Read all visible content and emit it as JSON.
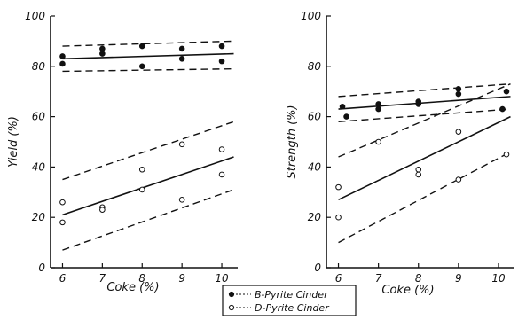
{
  "chart_data": [
    {
      "type": "scatter",
      "panel": "left",
      "title": "",
      "xlabel": "Coke (%)",
      "ylabel": "Yield (%)",
      "xlim": [
        5.7,
        10.4
      ],
      "ylim": [
        0,
        100
      ],
      "xticks": [
        "6",
        "7",
        "8",
        "9",
        "10"
      ],
      "yticks": [
        "0",
        "20",
        "40",
        "60",
        "80",
        "100"
      ],
      "grid": false,
      "series": [
        {
          "name": "B-Pyrite Cinder",
          "marker": "filled-circle",
          "points": [
            {
              "x": 6,
              "y": 84
            },
            {
              "x": 6,
              "y": 81
            },
            {
              "x": 7,
              "y": 87
            },
            {
              "x": 7,
              "y": 85
            },
            {
              "x": 8,
              "y": 88
            },
            {
              "x": 8,
              "y": 80
            },
            {
              "x": 9,
              "y": 87
            },
            {
              "x": 9,
              "y": 83
            },
            {
              "x": 10,
              "y": 88
            },
            {
              "x": 10,
              "y": 82
            }
          ],
          "regression": {
            "x": [
              6,
              10.3
            ],
            "y": [
              83,
              85
            ]
          },
          "band_upper": {
            "x": [
              6,
              10.3
            ],
            "y": [
              88,
              90
            ]
          },
          "band_lower": {
            "x": [
              6,
              10.3
            ],
            "y": [
              78,
              79
            ]
          }
        },
        {
          "name": "D-Pyrite Cinder",
          "marker": "open-circle",
          "points": [
            {
              "x": 6,
              "y": 26
            },
            {
              "x": 6,
              "y": 18
            },
            {
              "x": 7,
              "y": 24
            },
            {
              "x": 7,
              "y": 23
            },
            {
              "x": 8,
              "y": 39
            },
            {
              "x": 8,
              "y": 31
            },
            {
              "x": 9,
              "y": 49
            },
            {
              "x": 9,
              "y": 27
            },
            {
              "x": 10,
              "y": 47
            },
            {
              "x": 10,
              "y": 37
            }
          ],
          "regression": {
            "x": [
              6,
              10.3
            ],
            "y": [
              21,
              44
            ]
          },
          "band_upper": {
            "x": [
              6,
              10.3
            ],
            "y": [
              35,
              58
            ]
          },
          "band_lower": {
            "x": [
              6,
              10.3
            ],
            "y": [
              7,
              31
            ]
          }
        }
      ]
    },
    {
      "type": "scatter",
      "panel": "right",
      "title": "",
      "xlabel": "Coke (%)",
      "ylabel": "Strength (%)",
      "xlim": [
        5.7,
        10.4
      ],
      "ylim": [
        0,
        100
      ],
      "xticks": [
        "6",
        "7",
        "8",
        "9",
        "10"
      ],
      "yticks": [
        "0",
        "20",
        "40",
        "60",
        "80",
        "100"
      ],
      "grid": false,
      "series": [
        {
          "name": "B-Pyrite Cinder",
          "marker": "filled-circle",
          "points": [
            {
              "x": 6.1,
              "y": 64
            },
            {
              "x": 6.2,
              "y": 60
            },
            {
              "x": 7,
              "y": 65
            },
            {
              "x": 7,
              "y": 63
            },
            {
              "x": 8,
              "y": 66
            },
            {
              "x": 8,
              "y": 65
            },
            {
              "x": 9,
              "y": 71
            },
            {
              "x": 9,
              "y": 69
            },
            {
              "x": 10.2,
              "y": 70
            },
            {
              "x": 10.1,
              "y": 63
            }
          ],
          "regression": {
            "x": [
              6,
              10.3
            ],
            "y": [
              63,
              68
            ]
          },
          "band_upper": {
            "x": [
              6,
              10.3
            ],
            "y": [
              68,
              73
            ]
          },
          "band_lower": {
            "x": [
              6,
              10.3
            ],
            "y": [
              58,
              63
            ]
          }
        },
        {
          "name": "D-Pyrite Cinder",
          "marker": "open-circle",
          "points": [
            {
              "x": 6,
              "y": 32
            },
            {
              "x": 6,
              "y": 20
            },
            {
              "x": 7,
              "y": 50
            },
            {
              "x": 8,
              "y": 39
            },
            {
              "x": 8,
              "y": 37
            },
            {
              "x": 9,
              "y": 54
            },
            {
              "x": 9,
              "y": 35
            },
            {
              "x": 10.2,
              "y": 45
            }
          ],
          "regression": {
            "x": [
              6,
              10.3
            ],
            "y": [
              27,
              60
            ]
          },
          "band_upper": {
            "x": [
              6,
              10.3
            ],
            "y": [
              44,
              73
            ]
          },
          "band_lower": {
            "x": [
              6,
              10.3
            ],
            "y": [
              10,
              46
            ]
          }
        }
      ]
    }
  ],
  "legend": {
    "placement": "bottom-center",
    "items": [
      {
        "label": "B-Pyrite Cinder",
        "marker": "filled-circle",
        "line": "dotted"
      },
      {
        "label": "D-Pyrite Cinder",
        "marker": "open-circle",
        "line": "dotted"
      }
    ]
  },
  "colors": {
    "ink": "#111111",
    "background": "#ffffff"
  }
}
